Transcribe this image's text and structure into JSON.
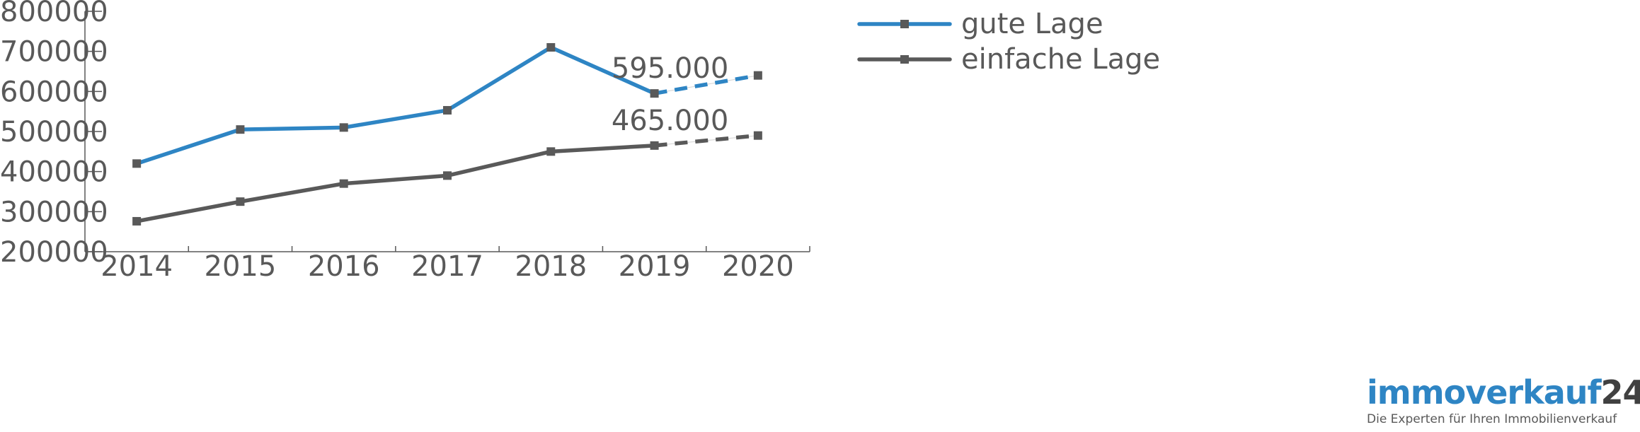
{
  "chart_data": {
    "type": "line",
    "categories": [
      "2014",
      "2015",
      "2016",
      "2017",
      "2018",
      "2019",
      "2020"
    ],
    "series": [
      {
        "name": "gute Lage",
        "color": "#2e85c4",
        "values": [
          420000,
          505000,
          510000,
          553000,
          710000,
          595000,
          640000
        ]
      },
      {
        "name": "einfache Lage",
        "color": "#595959",
        "values": [
          276000,
          325000,
          370000,
          390000,
          450000,
          465000,
          490000
        ]
      }
    ],
    "projected_segment": [
      "2019",
      "2020"
    ],
    "annotations": [
      {
        "series": "gute Lage",
        "x": "2019",
        "text": "595.000"
      },
      {
        "series": "einfache Lage",
        "x": "2019",
        "text": "465.000"
      }
    ],
    "yticks": [
      "200000",
      "300000",
      "400000",
      "500000",
      "600000",
      "700000",
      "800000"
    ],
    "ylim": [
      200000,
      800000
    ],
    "legend_position": "top-right",
    "grid": false
  },
  "brand": {
    "name_text": "immoverkauf",
    "name_number": "24",
    "tagline": "Die Experten für Ihren Immobilienverkauf"
  }
}
